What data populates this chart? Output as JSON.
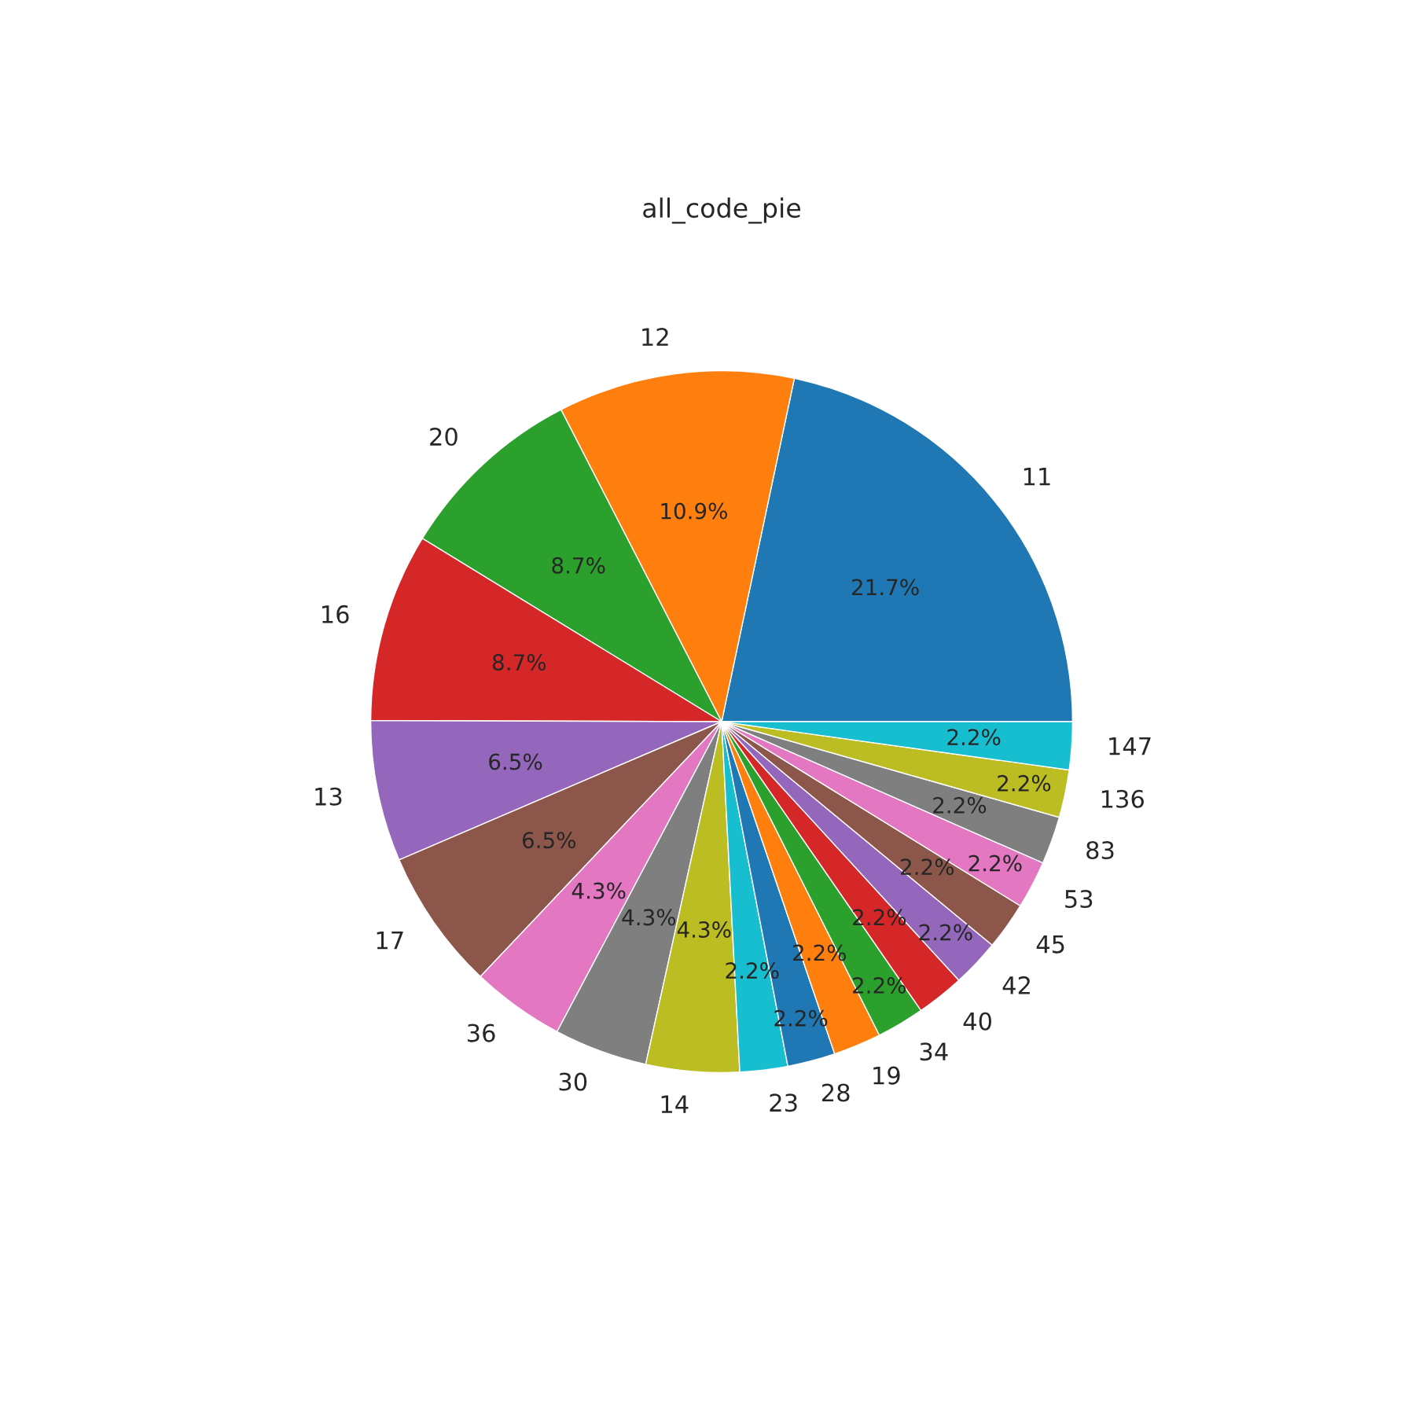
{
  "chart_data": {
    "type": "pie",
    "title": "all_code_pie",
    "categories": [
      "11",
      "12",
      "20",
      "16",
      "13",
      "17",
      "36",
      "30",
      "14",
      "23",
      "28",
      "19",
      "34",
      "40",
      "42",
      "45",
      "53",
      "83",
      "136",
      "147"
    ],
    "values": [
      21.7,
      10.9,
      8.7,
      8.7,
      6.5,
      6.5,
      4.3,
      4.3,
      4.3,
      2.2,
      2.2,
      2.2,
      2.2,
      2.2,
      2.2,
      2.2,
      2.2,
      2.2,
      2.2,
      2.2
    ],
    "value_labels": [
      "21.7%",
      "10.9%",
      "8.7%",
      "8.7%",
      "6.5%",
      "6.5%",
      "4.3%",
      "4.3%",
      "4.3%",
      "2.2%",
      "2.2%",
      "2.2%",
      "2.2%",
      "2.2%",
      "2.2%",
      "2.2%",
      "2.2%",
      "2.2%",
      "2.2%",
      "2.2%"
    ],
    "colors": [
      "#1f77b4",
      "#ff7f0e",
      "#2ca02c",
      "#d62728",
      "#9467bd",
      "#8c564b",
      "#e377c2",
      "#7f7f7f",
      "#bcbd22",
      "#17becf",
      "#1f77b4",
      "#ff7f0e",
      "#2ca02c",
      "#d62728",
      "#9467bd",
      "#8c564b",
      "#e377c2",
      "#7f7f7f",
      "#bcbd22",
      "#17becf"
    ]
  }
}
